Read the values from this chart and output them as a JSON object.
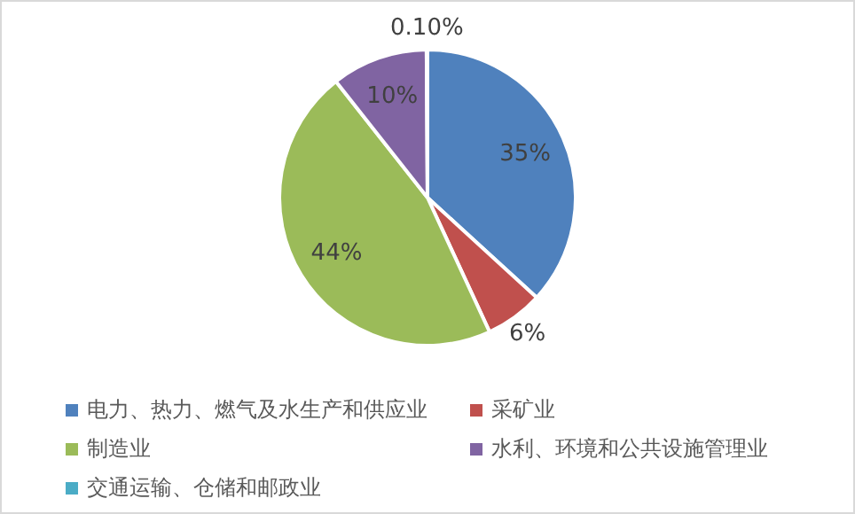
{
  "chart_data": {
    "type": "pie",
    "categories": [
      "电力、热力、燃气及水生产和供应业",
      "采矿业",
      "制造业",
      "水利、环境和公共设施管理业",
      "交通运输、仓储和邮政业"
    ],
    "values": [
      35,
      6,
      44,
      10,
      0.1
    ],
    "colors": [
      "#4f81bd",
      "#c0504d",
      "#9bbb59",
      "#8064a2",
      "#4bacc6"
    ],
    "value_labels": [
      "35%",
      "6%",
      "44%",
      "10%",
      "0.10%"
    ],
    "legend": "bottom"
  }
}
